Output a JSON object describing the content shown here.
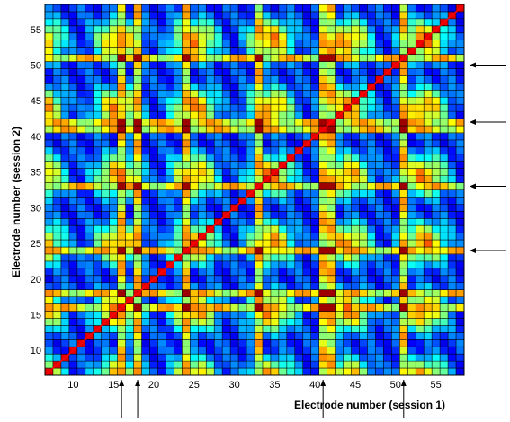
{
  "chart_data": {
    "type": "heatmap",
    "title": "",
    "xlabel": "Electrode number (session 1)",
    "ylabel": "Electrode number (session 2)",
    "xlim": [
      7,
      59
    ],
    "ylim": [
      7,
      59
    ],
    "x_ticks": [
      10,
      15,
      20,
      25,
      30,
      35,
      40,
      45,
      50,
      55
    ],
    "y_ticks": [
      10,
      15,
      20,
      25,
      30,
      35,
      40,
      45,
      50,
      55
    ],
    "grid": true,
    "legend": "none",
    "colormap": "jet",
    "value_range": [
      0,
      1
    ],
    "annotations": {
      "diagonal_line_color": "#ff0000",
      "right_arrows_at_electrode": [
        50,
        42,
        33,
        24
      ],
      "bottom_arrows_at_electrode": [
        16,
        18,
        41,
        51
      ]
    },
    "highlighted_electrodes": [
      16,
      18,
      24,
      33,
      41,
      42,
      51
    ],
    "matrix_note": "Symmetric similarity matrix; cell value for electrode pair (i, j)."
  }
}
